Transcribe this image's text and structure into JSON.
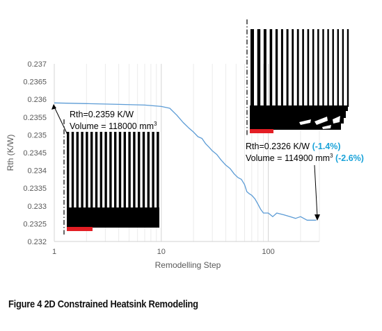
{
  "chart_data": {
    "type": "line",
    "xlabel": "Remodelling Step",
    "ylabel": "Rth (K/W)",
    "x_scale": "log",
    "xlim": [
      1,
      300
    ],
    "ylim": [
      0.232,
      0.237
    ],
    "x_ticks": [
      "1",
      "10",
      "100"
    ],
    "y_ticks": [
      "0.232",
      "0.2325",
      "0.233",
      "0.2335",
      "0.234",
      "0.2345",
      "0.235",
      "0.2355",
      "0.236",
      "0.2365",
      "0.237"
    ],
    "grid": "vertical",
    "line_color": "#5b9bd5",
    "series": [
      {
        "x": [
          1,
          2,
          4,
          7,
          10,
          12,
          14,
          16,
          18,
          20,
          22,
          24,
          26,
          28,
          30,
          33,
          36,
          40,
          44,
          48,
          52,
          56,
          60,
          63,
          66,
          70,
          75,
          80,
          85,
          90,
          100,
          110,
          120,
          140,
          160,
          180,
          200,
          230,
          260,
          280
        ],
        "y": [
          0.2359,
          0.23588,
          0.23586,
          0.23584,
          0.2358,
          0.23575,
          0.23555,
          0.23535,
          0.2352,
          0.23508,
          0.23495,
          0.2349,
          0.23475,
          0.23465,
          0.23455,
          0.23445,
          0.2343,
          0.23415,
          0.23405,
          0.2339,
          0.2338,
          0.23375,
          0.2336,
          0.2334,
          0.23335,
          0.2333,
          0.2332,
          0.23305,
          0.2329,
          0.2328,
          0.2328,
          0.2327,
          0.2328,
          0.23275,
          0.2327,
          0.23265,
          0.2327,
          0.2326,
          0.2326,
          0.2326
        ]
      }
    ],
    "annotations": {
      "start_line1": "Rth=0.2359 K/W",
      "start_line2": "Volume = 118000 mm",
      "start_sup": "3",
      "end_line1": "Rth=0.2326 K/W",
      "end_pct1": "(-1.4%)",
      "end_line2": "Volume = 114900 mm",
      "end_sup": "3",
      "end_pct2": "(-2.6%)",
      "pct_color": "#1aa3d9"
    }
  },
  "caption": "Figure 4 2D Constrained Heatsink Remodeling"
}
